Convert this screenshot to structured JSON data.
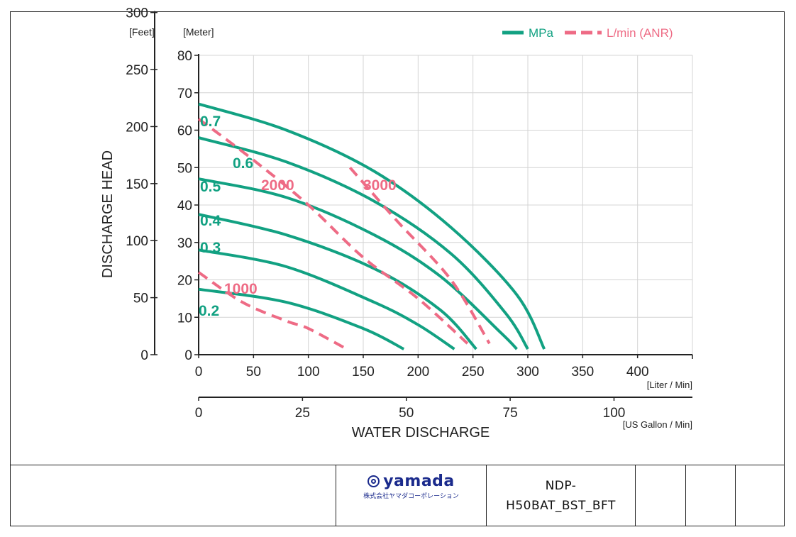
{
  "chart_data": {
    "type": "line",
    "xlabel": "WATER DISCHARGE",
    "ylabel": "DISCHARGE HEAD",
    "x_unit_primary": "[Liter / Min]",
    "x_unit_secondary": "[US Gallon / Min]",
    "y_unit_feet": "[Feet]",
    "y_unit_meter": "[Meter]",
    "xlim": [
      0,
      450
    ],
    "ylim_meter": [
      0,
      80
    ],
    "x_ticks_liter": [
      "0",
      "50",
      "100",
      "150",
      "200",
      "250",
      "300",
      "350",
      "400"
    ],
    "x_ticks_gallon": [
      "0",
      "25",
      "50",
      "75",
      "100"
    ],
    "y_ticks_meter": [
      "0",
      "10",
      "20",
      "30",
      "40",
      "50",
      "60",
      "70",
      "80"
    ],
    "y_ticks_feet": [
      "0",
      "50",
      "100",
      "150",
      "200",
      "250",
      "300"
    ],
    "grid": true,
    "legend_position": "top-right",
    "legend": [
      {
        "label": "MPa",
        "color": "#12a182",
        "style": "solid"
      },
      {
        "label": "L/min (ANR)",
        "color": "#ee6b85",
        "style": "dashed"
      }
    ],
    "series": [
      {
        "name": "0.7",
        "kind": "MPa",
        "x": [
          0,
          80,
          160,
          230,
          290,
          315
        ],
        "y": [
          67,
          60,
          49,
          34,
          16,
          1.5
        ]
      },
      {
        "name": "0.6",
        "kind": "MPa",
        "x": [
          0,
          80,
          160,
          230,
          280,
          300
        ],
        "y": [
          58,
          51.5,
          41,
          27,
          11,
          1.5
        ]
      },
      {
        "name": "0.5",
        "kind": "MPa",
        "x": [
          0,
          80,
          160,
          220,
          275,
          290
        ],
        "y": [
          47,
          42,
          32,
          21,
          6,
          1.5
        ]
      },
      {
        "name": "0.4",
        "kind": "MPa",
        "x": [
          0,
          80,
          160,
          220,
          253
        ],
        "y": [
          37.5,
          32,
          23,
          12,
          1.5
        ]
      },
      {
        "name": "0.3",
        "kind": "MPa",
        "x": [
          0,
          80,
          160,
          200,
          233
        ],
        "y": [
          28,
          23.5,
          14,
          8,
          1.5
        ]
      },
      {
        "name": "0.2",
        "kind": "MPa",
        "x": [
          0,
          80,
          150,
          187
        ],
        "y": [
          17.5,
          14,
          7,
          1.5
        ]
      },
      {
        "name": "3000",
        "kind": "L/min (ANR)",
        "x": [
          138,
          180,
          230,
          265
        ],
        "y": [
          50,
          36,
          20,
          3
        ]
      },
      {
        "name": "2000",
        "kind": "L/min (ANR)",
        "x": [
          0,
          50,
          100,
          150,
          200,
          245
        ],
        "y": [
          63,
          52,
          40,
          26,
          15,
          3
        ]
      },
      {
        "name": "1000",
        "kind": "L/min (ANR)",
        "x": [
          0,
          40,
          80,
          100,
          135
        ],
        "y": [
          22,
          14,
          9,
          7,
          1.5
        ]
      }
    ],
    "curve_labels": [
      {
        "text": "0.7",
        "series": "0.7"
      },
      {
        "text": "0.6",
        "series": "0.6"
      },
      {
        "text": "0.5",
        "series": "0.5"
      },
      {
        "text": "0.4",
        "series": "0.4"
      },
      {
        "text": "0.3",
        "series": "0.3"
      },
      {
        "text": "0.2",
        "series": "0.2"
      },
      {
        "text": "2000",
        "series": "2000"
      },
      {
        "text": "3000",
        "series": "3000"
      },
      {
        "text": "1000",
        "series": "1000"
      }
    ]
  },
  "footer": {
    "logo_text": "yamada",
    "logo_subtext": "株式会社ヤマダコーポレーション",
    "model_line1": "NDP-",
    "model_line2": "H50BAT_BST_BFT"
  }
}
